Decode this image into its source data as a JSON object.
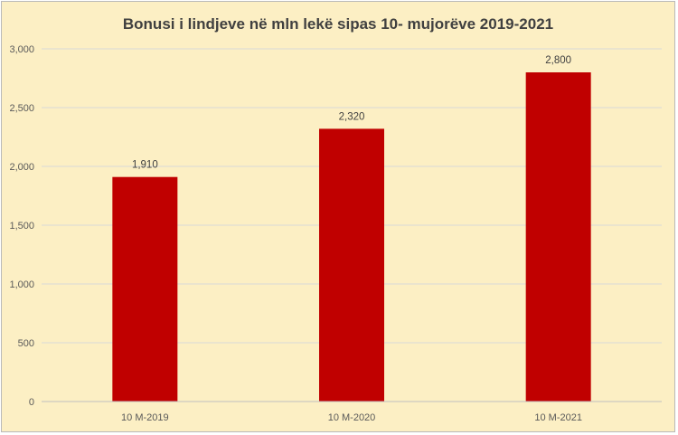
{
  "chart_data": {
    "type": "bar",
    "title": "Bonusi i lindjeve në mln lekë sipas 10- mujorëve 2019-2021",
    "xlabel": "",
    "ylabel": "",
    "categories": [
      "10 M-2019",
      "10 M-2020",
      "10 M-2021"
    ],
    "values": [
      1910,
      2320,
      2800
    ],
    "data_labels": [
      "1,910",
      "2,320",
      "2,800"
    ],
    "ylim": [
      0,
      3000
    ],
    "yticks": [
      0,
      500,
      1000,
      1500,
      2000,
      2500,
      3000
    ],
    "ytick_labels": [
      "0",
      "500",
      "1,000",
      "1,500",
      "2,000",
      "2,500",
      "3,000"
    ],
    "grid": true,
    "legend": "none",
    "colors": {
      "bar": "#c00000",
      "background": "#fcefc4",
      "grid": "#d9d9d9",
      "axis": "#bfbfbf"
    }
  }
}
